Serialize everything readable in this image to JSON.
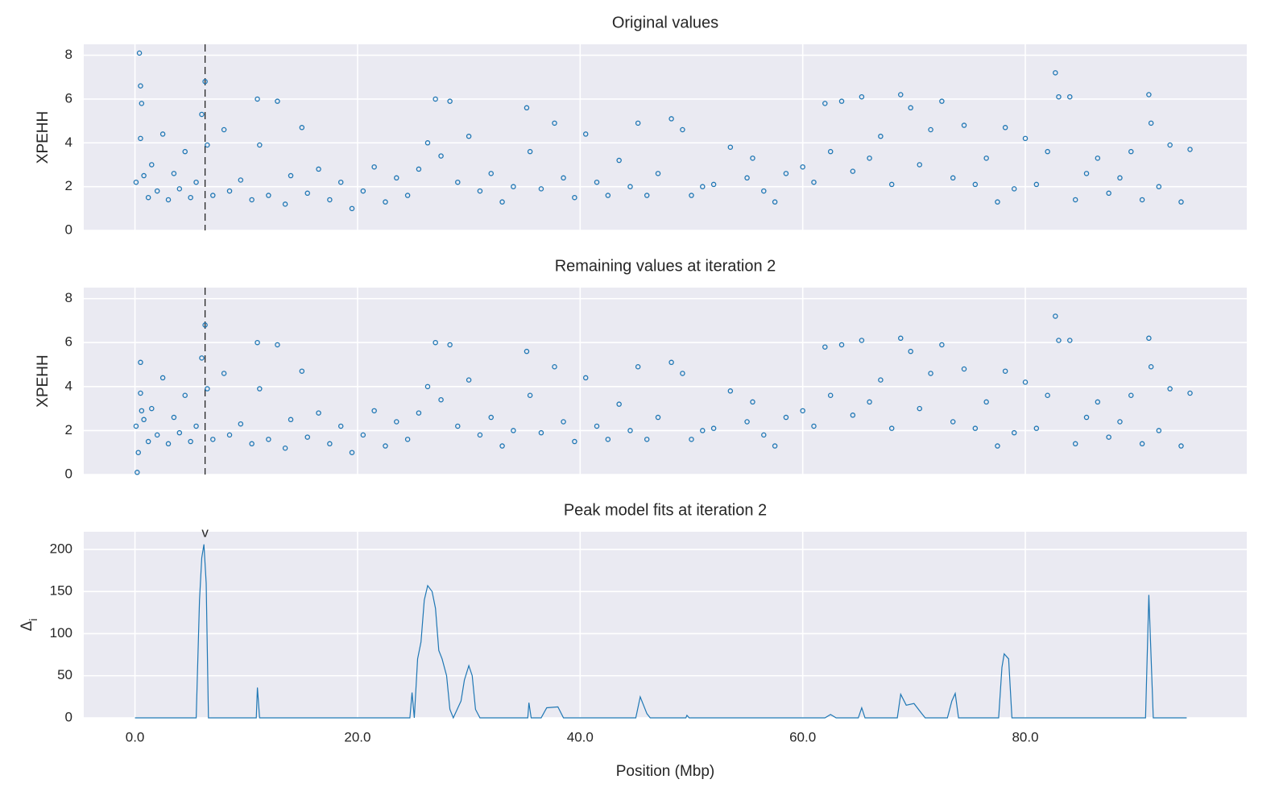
{
  "x_axis": {
    "xlabel": "Position (Mbp)",
    "xlim": [
      -4.6,
      99.9
    ],
    "xticks": [
      {
        "value": 0,
        "label": "0.0"
      },
      {
        "value": 20,
        "label": "20.0"
      },
      {
        "value": 40,
        "label": "40.0"
      },
      {
        "value": 60,
        "label": "60.0"
      },
      {
        "value": 80,
        "label": "80.0"
      }
    ]
  },
  "chart_data": [
    {
      "type": "scatter",
      "title": "Original values",
      "ylabel": "XPEHH",
      "color": "#1f77b4",
      "ylim": [
        0,
        8.5
      ],
      "yticks": [
        0,
        2,
        4,
        6,
        8
      ],
      "grid": true,
      "vline_x": 6.3,
      "x": [
        0.1,
        0.4,
        0.5,
        0.6,
        0.5,
        0.8,
        1.2,
        1.5,
        2.0,
        2.5,
        3.0,
        3.5,
        4.0,
        4.5,
        5.0,
        5.5,
        6.0,
        6.3,
        6.5,
        7.0,
        8.0,
        8.5,
        9.5,
        10.5,
        11.0,
        11.2,
        12.0,
        12.8,
        13.5,
        14.0,
        15.0,
        15.5,
        16.5,
        17.5,
        18.5,
        19.5,
        20.5,
        21.5,
        22.5,
        23.5,
        24.5,
        25.5,
        26.3,
        27.0,
        27.5,
        28.3,
        29.0,
        30.0,
        31.0,
        32.0,
        33.0,
        34.0,
        35.2,
        35.5,
        36.5,
        37.7,
        38.5,
        39.5,
        40.5,
        41.5,
        42.5,
        43.5,
        44.5,
        45.2,
        46.0,
        47.0,
        48.2,
        49.2,
        50.0,
        51.0,
        52.0,
        53.5,
        55.0,
        55.5,
        56.5,
        57.5,
        58.5,
        60.0,
        61.0,
        62.0,
        62.5,
        63.5,
        64.5,
        65.3,
        66.0,
        67.0,
        68.0,
        68.8,
        69.7,
        70.5,
        71.5,
        72.5,
        73.5,
        74.5,
        75.5,
        76.5,
        77.5,
        78.2,
        79.0,
        80.0,
        81.0,
        82.0,
        82.7,
        83.0,
        84.0,
        84.5,
        85.5,
        86.5,
        87.5,
        88.5,
        89.5,
        90.5,
        91.1,
        91.3,
        92.0,
        93.0,
        94.0,
        94.8
      ],
      "values": [
        2.2,
        8.1,
        6.6,
        5.8,
        4.2,
        2.5,
        1.5,
        3.0,
        1.8,
        4.4,
        1.4,
        2.6,
        1.9,
        3.6,
        1.5,
        2.2,
        5.3,
        6.8,
        3.9,
        1.6,
        4.6,
        1.8,
        2.3,
        1.4,
        6.0,
        3.9,
        1.6,
        5.9,
        1.2,
        2.5,
        4.7,
        1.7,
        2.8,
        1.4,
        2.2,
        1.0,
        1.8,
        2.9,
        1.3,
        2.4,
        1.6,
        2.8,
        4.0,
        6.0,
        3.4,
        5.9,
        2.2,
        4.3,
        1.8,
        2.6,
        1.3,
        2.0,
        5.6,
        3.6,
        1.9,
        4.9,
        2.4,
        1.5,
        4.4,
        2.2,
        1.6,
        3.2,
        2.0,
        4.9,
        1.6,
        2.6,
        5.1,
        4.6,
        1.6,
        2.0,
        2.1,
        3.8,
        2.4,
        3.3,
        1.8,
        1.3,
        2.6,
        2.9,
        2.2,
        5.8,
        3.6,
        5.9,
        2.7,
        6.1,
        3.3,
        4.3,
        2.1,
        6.2,
        5.6,
        3.0,
        4.6,
        5.9,
        2.4,
        4.8,
        2.1,
        3.3,
        1.3,
        4.7,
        1.9,
        4.2,
        2.1,
        3.6,
        7.2,
        6.1,
        6.1,
        1.4,
        2.6,
        3.3,
        1.7,
        2.4,
        3.6,
        1.4,
        6.2,
        4.9,
        2.0,
        3.9,
        1.3,
        3.7
      ]
    },
    {
      "type": "scatter",
      "title": "Remaining values at iteration 2",
      "ylabel": "XPEHH",
      "color": "#1f77b4",
      "ylim": [
        0,
        8.5
      ],
      "yticks": [
        0,
        2,
        4,
        6,
        8
      ],
      "grid": true,
      "vline_x": 6.3,
      "x": [
        0.1,
        0.2,
        0.3,
        0.5,
        0.5,
        0.6,
        0.8,
        1.2,
        1.5,
        2.0,
        2.5,
        3.0,
        3.5,
        4.0,
        4.5,
        5.0,
        5.5,
        6.0,
        6.3,
        6.5,
        7.0,
        8.0,
        8.5,
        9.5,
        10.5,
        11.0,
        11.2,
        12.0,
        12.8,
        13.5,
        14.0,
        15.0,
        15.5,
        16.5,
        17.5,
        18.5,
        19.5,
        20.5,
        21.5,
        22.5,
        23.5,
        24.5,
        25.5,
        26.3,
        27.0,
        27.5,
        28.3,
        29.0,
        30.0,
        31.0,
        32.0,
        33.0,
        34.0,
        35.2,
        35.5,
        36.5,
        37.7,
        38.5,
        39.5,
        40.5,
        41.5,
        42.5,
        43.5,
        44.5,
        45.2,
        46.0,
        47.0,
        48.2,
        49.2,
        50.0,
        51.0,
        52.0,
        53.5,
        55.0,
        55.5,
        56.5,
        57.5,
        58.5,
        60.0,
        61.0,
        62.0,
        62.5,
        63.5,
        64.5,
        65.3,
        66.0,
        67.0,
        68.0,
        68.8,
        69.7,
        70.5,
        71.5,
        72.5,
        73.5,
        74.5,
        75.5,
        76.5,
        77.5,
        78.2,
        79.0,
        80.0,
        81.0,
        82.0,
        82.7,
        83.0,
        84.0,
        84.5,
        85.5,
        86.5,
        87.5,
        88.5,
        89.5,
        90.5,
        91.1,
        91.3,
        92.0,
        93.0,
        94.0,
        94.8
      ],
      "values": [
        2.2,
        0.1,
        1.0,
        5.1,
        3.7,
        2.9,
        2.5,
        1.5,
        3.0,
        1.8,
        4.4,
        1.4,
        2.6,
        1.9,
        3.6,
        1.5,
        2.2,
        5.3,
        6.8,
        3.9,
        1.6,
        4.6,
        1.8,
        2.3,
        1.4,
        6.0,
        3.9,
        1.6,
        5.9,
        1.2,
        2.5,
        4.7,
        1.7,
        2.8,
        1.4,
        2.2,
        1.0,
        1.8,
        2.9,
        1.3,
        2.4,
        1.6,
        2.8,
        4.0,
        6.0,
        3.4,
        5.9,
        2.2,
        4.3,
        1.8,
        2.6,
        1.3,
        2.0,
        5.6,
        3.6,
        1.9,
        4.9,
        2.4,
        1.5,
        4.4,
        2.2,
        1.6,
        3.2,
        2.0,
        4.9,
        1.6,
        2.6,
        5.1,
        4.6,
        1.6,
        2.0,
        2.1,
        3.8,
        2.4,
        3.3,
        1.8,
        1.3,
        2.6,
        2.9,
        2.2,
        5.8,
        3.6,
        5.9,
        2.7,
        6.1,
        3.3,
        4.3,
        2.1,
        6.2,
        5.6,
        3.0,
        4.6,
        5.9,
        2.4,
        4.8,
        2.1,
        3.3,
        1.3,
        4.7,
        1.9,
        4.2,
        2.1,
        3.6,
        7.2,
        6.1,
        6.1,
        1.4,
        2.6,
        3.3,
        1.7,
        2.4,
        3.6,
        1.4,
        6.2,
        4.9,
        2.0,
        3.9,
        1.3,
        3.7
      ]
    },
    {
      "type": "line",
      "title": "Peak model fits at iteration 2",
      "ylabel": "Δ",
      "ylabel_sub": "i",
      "color": "#1f77b4",
      "ylim": [
        0,
        221
      ],
      "yticks": [
        0,
        50,
        100,
        150,
        200
      ],
      "grid": true,
      "annotation": {
        "text": "v",
        "x": 6.3
      },
      "x": [
        0,
        5.5,
        5.8,
        6.0,
        6.2,
        6.4,
        6.6,
        10.9,
        11.0,
        11.2,
        24.7,
        24.9,
        25.1,
        25.4,
        25.7,
        26.0,
        26.3,
        26.7,
        27.0,
        27.3,
        27.6,
        28.0,
        28.3,
        28.6,
        29.3,
        29.6,
        30.0,
        30.3,
        30.6,
        31.0,
        35.3,
        35.4,
        35.6,
        36.5,
        37.0,
        38.0,
        38.5,
        45.0,
        45.4,
        46.0,
        46.3,
        49.5,
        49.6,
        49.8,
        62.0,
        62.5,
        63.0,
        65.0,
        65.3,
        65.6,
        68.5,
        68.8,
        69.3,
        70.0,
        70.7,
        71.0,
        73.0,
        73.4,
        73.7,
        74.0,
        77.6,
        77.9,
        78.1,
        78.5,
        78.8,
        90.8,
        91.1,
        91.5,
        94.5
      ],
      "values": [
        0,
        0,
        140,
        190,
        206,
        160,
        0,
        0,
        36,
        0,
        0,
        30,
        0,
        70,
        90,
        140,
        157,
        150,
        130,
        80,
        70,
        50,
        10,
        0,
        20,
        45,
        62,
        50,
        10,
        0,
        0,
        18,
        0,
        0,
        12,
        13,
        0,
        0,
        25,
        5,
        0,
        0,
        3,
        0,
        0,
        4,
        0,
        0,
        12,
        0,
        0,
        28,
        15,
        17,
        5,
        0,
        0,
        20,
        29,
        0,
        0,
        60,
        76,
        70,
        0,
        0,
        146,
        0,
        0
      ]
    }
  ]
}
